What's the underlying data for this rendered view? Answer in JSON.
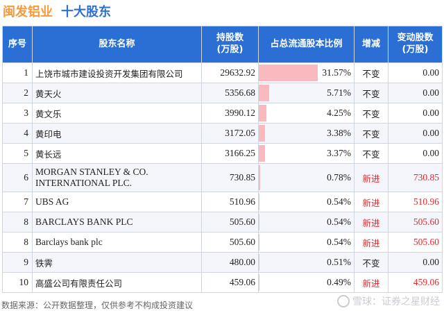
{
  "title": {
    "company": "闽发铝业",
    "section": "十大股东"
  },
  "headers": [
    "序号",
    "股东名称",
    "持股数\n(万股)",
    "占总流通股本比例",
    "增减",
    "变动股数\n(万股)"
  ],
  "rows": [
    {
      "idx": "1",
      "name": "上饶市城市建设投资开发集团有限公司",
      "shares": "29632.92",
      "pct": "31.57%",
      "pct_value": 31.57,
      "change": "不变",
      "amount": "0.00"
    },
    {
      "idx": "2",
      "name": "黄天火",
      "shares": "5356.68",
      "pct": "5.71%",
      "pct_value": 5.71,
      "change": "不变",
      "amount": "0.00"
    },
    {
      "idx": "3",
      "name": "黄文乐",
      "shares": "3990.12",
      "pct": "4.25%",
      "pct_value": 4.25,
      "change": "不变",
      "amount": "0.00"
    },
    {
      "idx": "4",
      "name": "黄印电",
      "shares": "3172.05",
      "pct": "3.38%",
      "pct_value": 3.38,
      "change": "不变",
      "amount": "0.00"
    },
    {
      "idx": "5",
      "name": "黄长远",
      "shares": "3166.25",
      "pct": "3.37%",
      "pct_value": 3.37,
      "change": "不变",
      "amount": "0.00"
    },
    {
      "idx": "6",
      "name": "MORGAN STANLEY & CO. INTERNATIONAL PLC.",
      "shares": "730.85",
      "pct": "0.78%",
      "pct_value": 0.78,
      "change": "新进",
      "amount": "730.85"
    },
    {
      "idx": "7",
      "name": "UBS AG",
      "shares": "510.96",
      "pct": "0.54%",
      "pct_value": 0.54,
      "change": "新进",
      "amount": "510.96"
    },
    {
      "idx": "8",
      "name": "BARCLAYS BANK PLC",
      "shares": "505.60",
      "pct": "0.54%",
      "pct_value": 0.54,
      "change": "新进",
      "amount": "505.60"
    },
    {
      "idx": "8",
      "name": "Barclays bank plc",
      "shares": "505.60",
      "pct": "0.54%",
      "pct_value": 0.54,
      "change": "新进",
      "amount": "505.60"
    },
    {
      "idx": "9",
      "name": "铁霁",
      "shares": "480.00",
      "pct": "0.51%",
      "pct_value": 0.51,
      "change": "不变",
      "amount": "0.00"
    },
    {
      "idx": "10",
      "name": "高盛公司有限责任公司",
      "shares": "459.06",
      "pct": "0.49%",
      "pct_value": 0.49,
      "change": "新进",
      "amount": "459.06"
    }
  ],
  "footer": "数据来源：公开数据整理，仅供参考不构成投资建议",
  "brand": "雪球：证券之星财经",
  "colors": {
    "header_bg": "#2b6fd4",
    "bar": "#f9b9bf",
    "new_entry": "#e0262b",
    "title_company": "#f39a3c",
    "title_section": "#2f6fd1"
  }
}
